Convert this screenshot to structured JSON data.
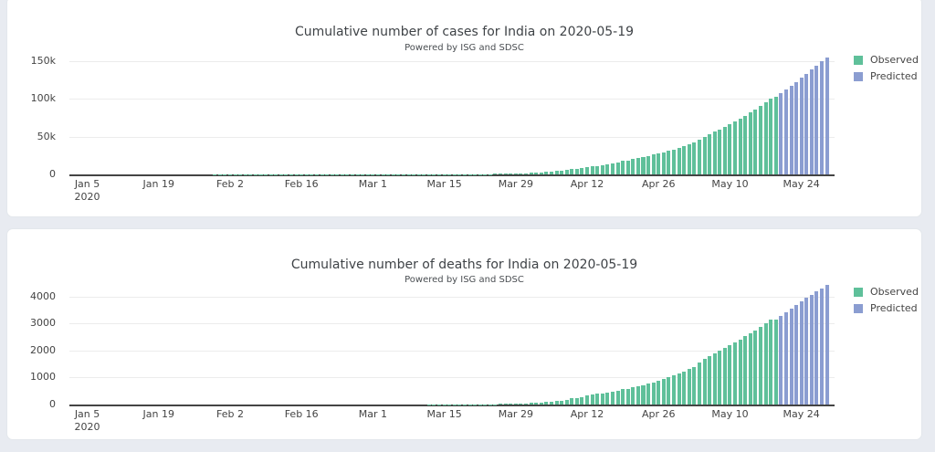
{
  "page": {
    "background_color": "#e8ebf1",
    "card_color": "#ffffff"
  },
  "chart_data": [
    {
      "type": "bar",
      "title": "Cumulative number of cases for India on 2020-05-19",
      "subtitle": "Powered by ISG and SDSC",
      "xlabel": "",
      "ylabel": "",
      "grid": true,
      "legend_position": "top-right-outside",
      "y_ticks": [
        0,
        50000,
        100000,
        150000
      ],
      "y_tick_labels": [
        "0",
        "50k",
        "100k",
        "150k"
      ],
      "ylim": [
        0,
        161000
      ],
      "x_start_date": "2020-01-05",
      "x_pad_days_before": 3,
      "x_pad_days_after": 1,
      "x_tick_days": [
        0,
        14,
        28,
        42,
        56,
        70,
        84,
        98,
        112,
        126,
        140
      ],
      "x_tick_labels": [
        [
          "Jan 5",
          "2020"
        ],
        [
          "Jan 19"
        ],
        [
          "Feb 2"
        ],
        [
          "Feb 16"
        ],
        [
          "Mar 1"
        ],
        [
          "Mar 15"
        ],
        [
          "Mar 29"
        ],
        [
          "Apr 12"
        ],
        [
          "Apr 26"
        ],
        [
          "May 10"
        ],
        [
          "May 24"
        ]
      ],
      "series": [
        {
          "name": "Observed",
          "color": "#5fc09a",
          "start_date": "2020-01-05",
          "end_date": "2020-05-19",
          "values": [
            0,
            0,
            0,
            0,
            0,
            0,
            0,
            0,
            0,
            0,
            0,
            0,
            0,
            0,
            0,
            0,
            0,
            0,
            0,
            0,
            0,
            0,
            0,
            0,
            0,
            1,
            1,
            1,
            2,
            3,
            3,
            3,
            3,
            3,
            3,
            3,
            3,
            3,
            3,
            3,
            3,
            3,
            3,
            3,
            3,
            3,
            3,
            3,
            3,
            3,
            3,
            3,
            3,
            3,
            3,
            3,
            3,
            5,
            5,
            28,
            30,
            31,
            34,
            39,
            43,
            56,
            62,
            73,
            82,
            102,
            113,
            119,
            142,
            156,
            194,
            244,
            330,
            396,
            499,
            536,
            657,
            727,
            887,
            987,
            1024,
            1251,
            1397,
            1998,
            2543,
            2567,
            3082,
            3588,
            4778,
            5311,
            5916,
            6725,
            7598,
            8446,
            9205,
            10453,
            11487,
            12322,
            13430,
            14352,
            15722,
            17615,
            18539,
            20080,
            21370,
            23077,
            24530,
            26283,
            27890,
            29451,
            31324,
            33062,
            34863,
            37257,
            39699,
            42505,
            46437,
            49400,
            52987,
            56351,
            59695,
            62808,
            67161,
            70768,
            74292,
            78055,
            81997,
            85784,
            90648,
            95698,
            100328,
            103500
          ]
        },
        {
          "name": "Predicted",
          "color": "#8b9dd1",
          "start_date": "2020-05-20",
          "end_date": "2020-05-29",
          "values": [
            108200,
            112900,
            117800,
            122800,
            128000,
            133300,
            138700,
            144200,
            149600,
            154900
          ]
        }
      ]
    },
    {
      "type": "bar",
      "title": "Cumulative number of deaths for India on 2020-05-19",
      "subtitle": "Powered by ISG and SDSC",
      "xlabel": "",
      "ylabel": "",
      "grid": true,
      "legend_position": "top-right-outside",
      "y_ticks": [
        0,
        1000,
        2000,
        3000,
        4000
      ],
      "y_tick_labels": [
        "0",
        "1000",
        "2000",
        "3000",
        "4000"
      ],
      "ylim": [
        0,
        4500
      ],
      "x_start_date": "2020-01-05",
      "x_pad_days_before": 3,
      "x_pad_days_after": 1,
      "x_tick_days": [
        0,
        14,
        28,
        42,
        56,
        70,
        84,
        98,
        112,
        126,
        140
      ],
      "x_tick_labels": [
        [
          "Jan 5",
          "2020"
        ],
        [
          "Jan 19"
        ],
        [
          "Feb 2"
        ],
        [
          "Feb 16"
        ],
        [
          "Mar 1"
        ],
        [
          "Mar 15"
        ],
        [
          "Mar 29"
        ],
        [
          "Apr 12"
        ],
        [
          "Apr 26"
        ],
        [
          "May 10"
        ],
        [
          "May 24"
        ]
      ],
      "series": [
        {
          "name": "Observed",
          "color": "#5fc09a",
          "start_date": "2020-01-05",
          "end_date": "2020-05-19",
          "values": [
            0,
            0,
            0,
            0,
            0,
            0,
            0,
            0,
            0,
            0,
            0,
            0,
            0,
            0,
            0,
            0,
            0,
            0,
            0,
            0,
            0,
            0,
            0,
            0,
            0,
            0,
            0,
            0,
            0,
            0,
            0,
            0,
            0,
            0,
            0,
            0,
            0,
            0,
            0,
            0,
            0,
            0,
            0,
            0,
            0,
            0,
            0,
            0,
            0,
            0,
            0,
            0,
            0,
            0,
            0,
            0,
            0,
            0,
            0,
            0,
            0,
            0,
            0,
            0,
            0,
            0,
            0,
            1,
            2,
            2,
            2,
            2,
            3,
            3,
            4,
            5,
            6,
            7,
            10,
            10,
            12,
            20,
            20,
            24,
            27,
            32,
            35,
            58,
            72,
            72,
            86,
            99,
            136,
            150,
            178,
            226,
            246,
            288,
            331,
            358,
            393,
            405,
            448,
            486,
            521,
            559,
            592,
            645,
            681,
            721,
            780,
            825,
            872,
            939,
            1008,
            1079,
            1154,
            1223,
            1323,
            1391,
            1566,
            1693,
            1785,
            1889,
            1985,
            2101,
            2212,
            2294,
            2415,
            2551,
            2649,
            2753,
            2871,
            3025,
            3156,
            3163
          ]
        },
        {
          "name": "Predicted",
          "color": "#8b9dd1",
          "start_date": "2020-05-20",
          "end_date": "2020-05-29",
          "values": [
            3290,
            3420,
            3550,
            3685,
            3815,
            3945,
            4070,
            4190,
            4310,
            4430
          ]
        }
      ]
    }
  ]
}
